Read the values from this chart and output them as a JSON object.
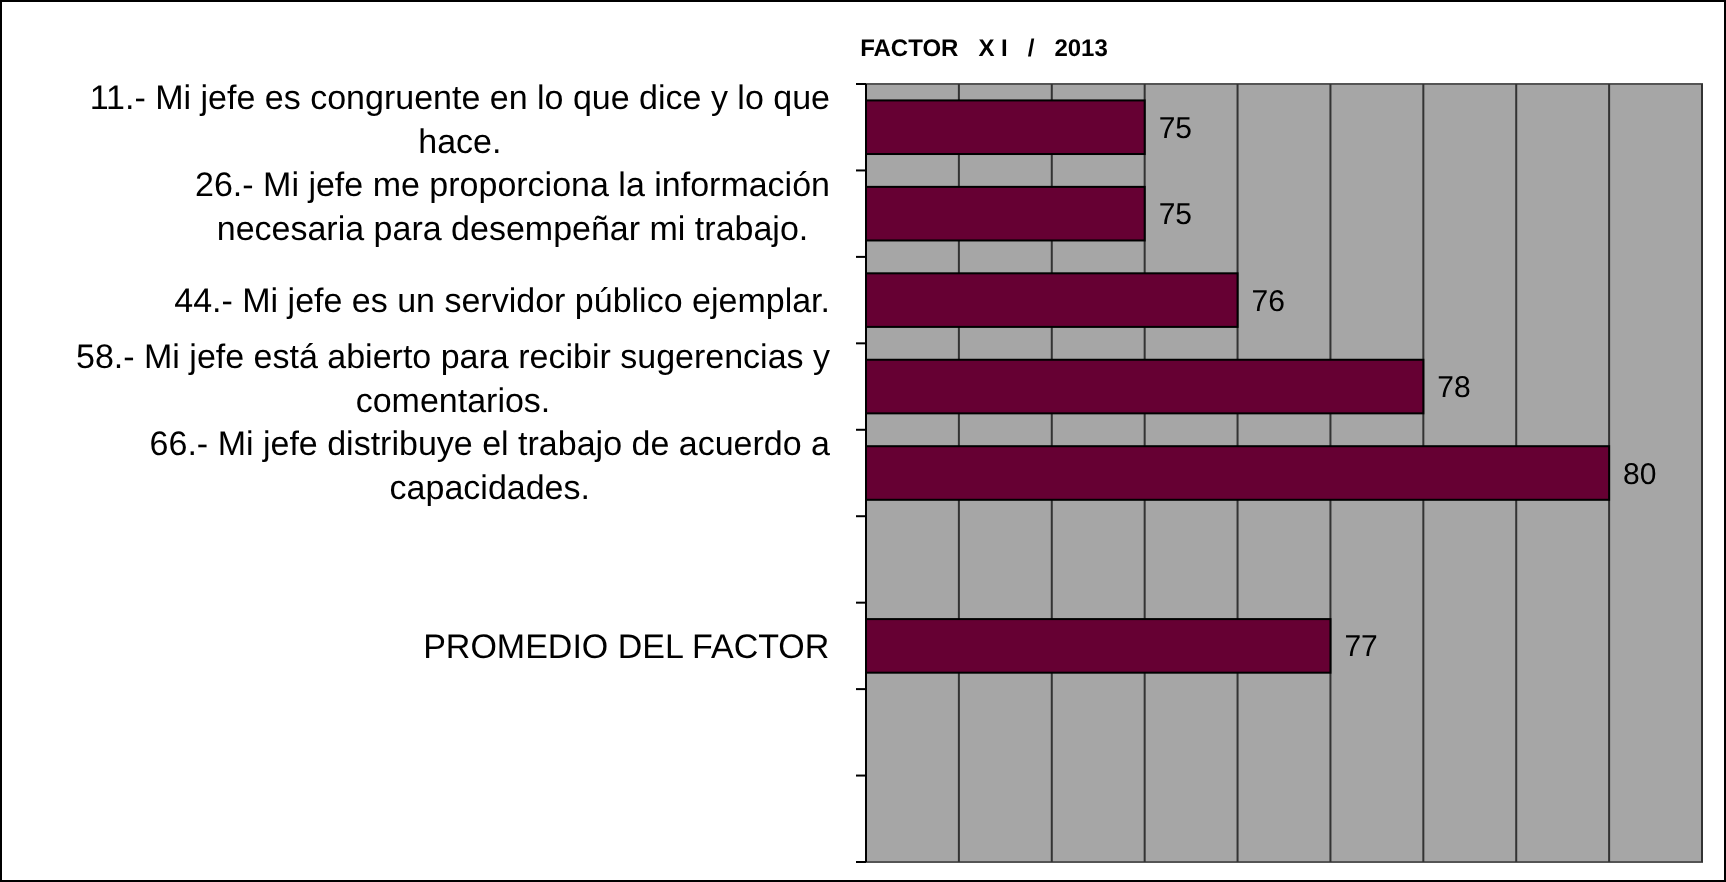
{
  "chart_data": {
    "type": "bar",
    "orientation": "horizontal",
    "title": "FACTOR   X I   /   2013",
    "categories": [
      "11.- Mi jefe es congruente en lo que dice y lo que hace.",
      "26.- Mi jefe me proporciona la información necesaria para desempeñar mi trabajo.",
      "44.- Mi jefe es un servidor público ejemplar.",
      "58.- Mi jefe está abierto para recibir sugerencias y comentarios.",
      "66.- Mi jefe distribuye el trabajo de acuerdo a capacidades.",
      null,
      "PROMEDIO DEL FACTOR",
      null,
      null
    ],
    "values": [
      75,
      75,
      76,
      78,
      80,
      null,
      77,
      null,
      null
    ],
    "color": "#660033",
    "data_labels": true,
    "xlim": [
      72,
      81
    ],
    "xticks": [
      {
        "value": 72,
        "label": null
      },
      {
        "value": 73,
        "label": null
      },
      {
        "value": 74,
        "label": null
      },
      {
        "value": 75,
        "label": null
      },
      {
        "value": 76,
        "label": null
      },
      {
        "value": 77,
        "label": null
      },
      {
        "value": 78,
        "label": null
      },
      {
        "value": 79,
        "label": null
      },
      {
        "value": 80,
        "label": null
      },
      {
        "value": 81,
        "label": null
      }
    ],
    "grid": "x"
  }
}
